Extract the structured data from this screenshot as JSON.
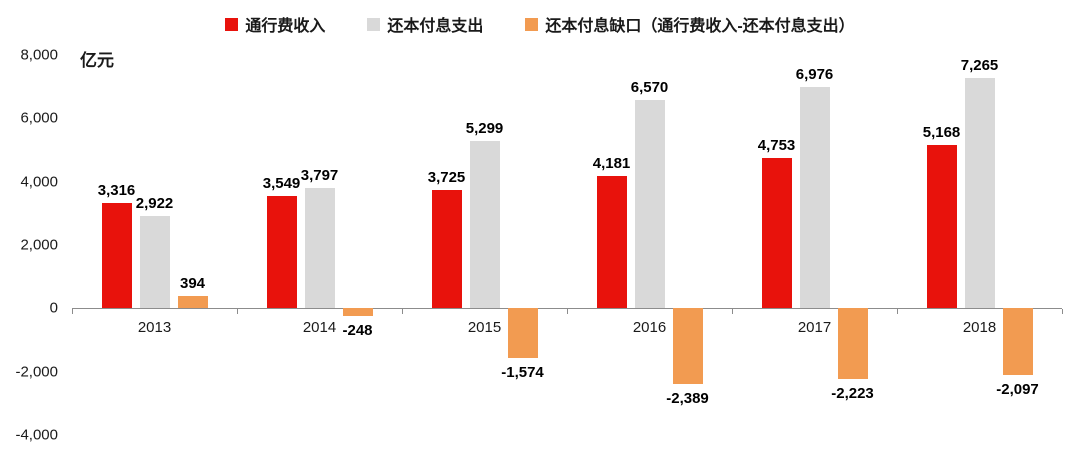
{
  "chart_data": {
    "type": "bar",
    "title": "",
    "unit_label": "亿元",
    "categories": [
      "2013",
      "2014",
      "2015",
      "2016",
      "2017",
      "2018"
    ],
    "series": [
      {
        "name": "通行费收入",
        "color": "#e8120c",
        "values": [
          3316,
          3549,
          3725,
          4181,
          4753,
          5168
        ]
      },
      {
        "name": "还本付息支出",
        "color": "#d9d9d9",
        "values": [
          2922,
          3797,
          5299,
          6570,
          6976,
          7265
        ]
      },
      {
        "name": "还本付息缺口（通行费收入-还本付息支出）",
        "color": "#f29b51",
        "values": [
          394,
          -248,
          -1574,
          -2389,
          -2223,
          -2097
        ]
      }
    ],
    "ylim": [
      -4000,
      8000
    ],
    "ytick_step": 2000,
    "ytick_labels": [
      "8,000",
      "6,000",
      "4,000",
      "2,000",
      "0",
      "-2,000",
      "-4,000"
    ],
    "grid": false,
    "legend_position": "top"
  }
}
